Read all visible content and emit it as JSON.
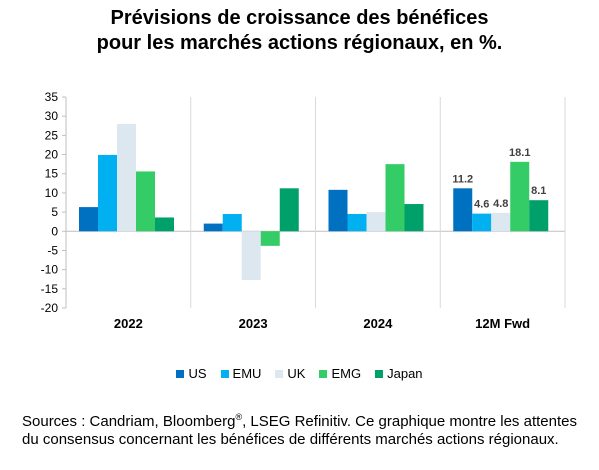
{
  "title": {
    "line1": "Prévisions de croissance des bénéfices",
    "line2": "pour les marchés actions régionaux, en %."
  },
  "chart_data": {
    "type": "bar",
    "categories": [
      "2022",
      "2023",
      "2024",
      "12M Fwd"
    ],
    "series": [
      {
        "name": "US",
        "color": "#0070c0",
        "values": [
          6.3,
          2.0,
          10.8,
          11.2
        ]
      },
      {
        "name": "EMU",
        "color": "#00b0f0",
        "values": [
          19.9,
          4.5,
          4.5,
          4.6
        ]
      },
      {
        "name": "UK",
        "color": "#dde7ef",
        "values": [
          28.0,
          -12.7,
          5.0,
          4.8
        ]
      },
      {
        "name": "EMG",
        "color": "#33cc66",
        "values": [
          15.6,
          -3.8,
          17.5,
          18.1
        ]
      },
      {
        "name": "Japan",
        "color": "#00a06a",
        "values": [
          3.6,
          11.2,
          7.1,
          8.1
        ]
      }
    ],
    "data_labels": {
      "category": "12M Fwd",
      "values": [
        "11.2",
        "4.6",
        "4.8",
        "18.1",
        "8.1"
      ]
    },
    "ylim": [
      -20,
      35
    ],
    "yticks": [
      "35",
      "30",
      "25",
      "20",
      "15",
      "10",
      "5",
      "0",
      "-5",
      "-10",
      "-15",
      "-20"
    ],
    "legend_position": "bottom",
    "grid": false
  },
  "source": {
    "before": "Sources : Candriam, Bloomberg",
    "sup": "®",
    "after": ", LSEG Refinitiv. Ce graphique montre les attentes du consensus concernant les bénéfices de différents marchés actions régionaux."
  }
}
